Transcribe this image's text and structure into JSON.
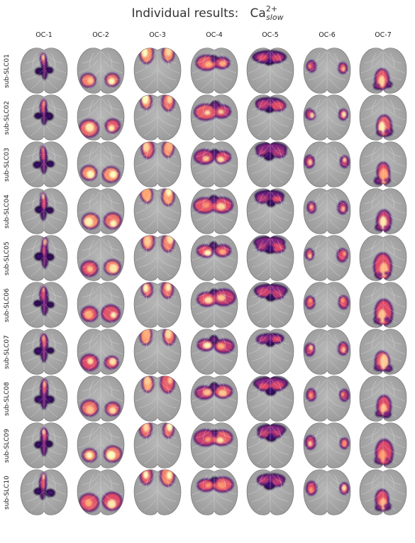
{
  "figure": {
    "title_main": "Individual results:",
    "title_symbol": "Ca",
    "title_superscript": "2+",
    "title_subscript": "slow"
  },
  "columns": [
    "OC-1",
    "OC-2",
    "OC-3",
    "OC-4",
    "OC-5",
    "OC-6",
    "OC-7"
  ],
  "rows": [
    "sub-SLC01",
    "sub-SLC02",
    "sub-SLC03",
    "sub-SLC04",
    "sub-SLC05",
    "sub-SLC06",
    "sub-SLC07",
    "sub-SLC08",
    "sub-SLC09",
    "sub-SLC10"
  ],
  "colors": {
    "background": "#ffffff",
    "brain_gray": "#9a9a9a",
    "brain_gray_light": "#b8b8b8",
    "atlas_outline": "#ffffff",
    "colormap": [
      "#000004",
      "#3b0f70",
      "#8c2981",
      "#de4968",
      "#fe9f6d",
      "#fcfdbf"
    ]
  },
  "colormap_name": "magma"
}
